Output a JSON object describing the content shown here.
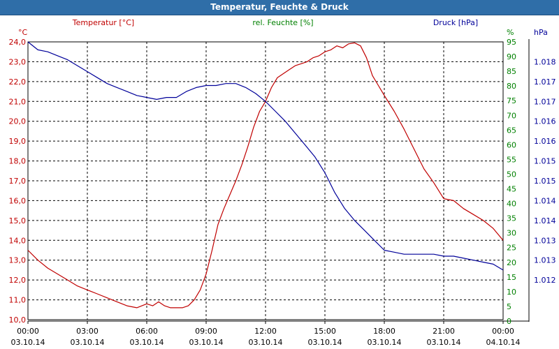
{
  "window": {
    "title": "Temperatur, Feuchte & Druck"
  },
  "colors": {
    "temperature": "#c00000",
    "humidity": "#008000",
    "pressure": "#000099",
    "grid": "#000000",
    "titlebar": "#2f6ea8"
  },
  "chart_data": {
    "type": "line",
    "title": "Temperatur, Feuchte & Druck",
    "x_axis": {
      "unit": "hours",
      "range": [
        0,
        24
      ],
      "ticks": [
        {
          "hour": 0,
          "time": "00:00",
          "date": "03.10.14"
        },
        {
          "hour": 3,
          "time": "03:00",
          "date": "03.10.14"
        },
        {
          "hour": 6,
          "time": "06:00",
          "date": "03.10.14"
        },
        {
          "hour": 9,
          "time": "09:00",
          "date": "03.10.14"
        },
        {
          "hour": 12,
          "time": "12:00",
          "date": "03.10.14"
        },
        {
          "hour": 15,
          "time": "15:00",
          "date": "03.10.14"
        },
        {
          "hour": 18,
          "time": "18:00",
          "date": "03.10.14"
        },
        {
          "hour": 21,
          "time": "21:00",
          "date": "03.10.14"
        },
        {
          "hour": 24,
          "time": "00:00",
          "date": "04.10.14"
        }
      ]
    },
    "axes": {
      "temperature": {
        "label": "Temperatur [°C]",
        "unit": "°C",
        "range": [
          10,
          24
        ],
        "ticks": [
          {
            "v": 24,
            "t": "24,0"
          },
          {
            "v": 23,
            "t": "23,0"
          },
          {
            "v": 22,
            "t": "22,0"
          },
          {
            "v": 21,
            "t": "21,0"
          },
          {
            "v": 20,
            "t": "20,0"
          },
          {
            "v": 19,
            "t": "19,0"
          },
          {
            "v": 18,
            "t": "18,0"
          },
          {
            "v": 17,
            "t": "17,0"
          },
          {
            "v": 16,
            "t": "16,0"
          },
          {
            "v": 15,
            "t": "15,0"
          },
          {
            "v": 14,
            "t": "14,0"
          },
          {
            "v": 13,
            "t": "13,0"
          },
          {
            "v": 12,
            "t": "12,0"
          },
          {
            "v": 11,
            "t": "11,0"
          },
          {
            "v": 10,
            "t": "10,0"
          }
        ]
      },
      "humidity": {
        "label": "rel. Feuchte [%]",
        "unit": "%",
        "range": [
          0,
          100
        ],
        "ticks": [
          {
            "v": 95,
            "t": "95"
          },
          {
            "v": 90,
            "t": "90"
          },
          {
            "v": 85,
            "t": "85"
          },
          {
            "v": 80,
            "t": "80"
          },
          {
            "v": 75,
            "t": "75"
          },
          {
            "v": 70,
            "t": "70"
          },
          {
            "v": 65,
            "t": "65"
          },
          {
            "v": 60,
            "t": "60"
          },
          {
            "v": 55,
            "t": "55"
          },
          {
            "v": 50,
            "t": "50"
          },
          {
            "v": 45,
            "t": "45"
          },
          {
            "v": 40,
            "t": "40"
          },
          {
            "v": 35,
            "t": "35"
          },
          {
            "v": 30,
            "t": "30"
          },
          {
            "v": 25,
            "t": "25"
          },
          {
            "v": 20,
            "t": "20"
          },
          {
            "v": 15,
            "t": "15"
          },
          {
            "v": 10,
            "t": "10"
          },
          {
            "v": 5,
            "t": "5"
          },
          {
            "v": 0,
            "t": "0"
          }
        ]
      },
      "pressure": {
        "label": "Druck [hPa]",
        "unit": "hPa",
        "range": [
          0,
          14
        ],
        "ticks": [
          {
            "v": 13,
            "t": "1.018"
          },
          {
            "v": 12,
            "t": "1.017"
          },
          {
            "v": 11,
            "t": "1.017"
          },
          {
            "v": 10,
            "t": "1.016"
          },
          {
            "v": 9,
            "t": "1.016"
          },
          {
            "v": 8,
            "t": "1.015"
          },
          {
            "v": 7,
            "t": "1.015"
          },
          {
            "v": 6,
            "t": "1.014"
          },
          {
            "v": 5,
            "t": "1.014"
          },
          {
            "v": 4,
            "t": "1.013"
          },
          {
            "v": 3,
            "t": "1.013"
          },
          {
            "v": 2,
            "t": "1.012"
          }
        ]
      }
    },
    "series": [
      {
        "name": "Temperatur [°C]",
        "axis": "temperature",
        "x": [
          0,
          0.5,
          1,
          1.5,
          2,
          2.5,
          3,
          3.5,
          4,
          4.5,
          5,
          5.5,
          6,
          6.3,
          6.6,
          6.9,
          7.2,
          7.5,
          7.8,
          8.1,
          8.4,
          8.7,
          9,
          9.3,
          9.6,
          9.9,
          10.2,
          10.5,
          10.8,
          11.1,
          11.4,
          11.7,
          12,
          12.3,
          12.6,
          12.9,
          13.2,
          13.5,
          13.8,
          14.1,
          14.4,
          14.7,
          15,
          15.3,
          15.6,
          15.9,
          16.2,
          16.5,
          16.8,
          17.1,
          17.4,
          17.7,
          18,
          18.5,
          19,
          19.5,
          20,
          20.5,
          21,
          21.5,
          22,
          22.5,
          23,
          23.5,
          24
        ],
        "values": [
          13.5,
          13.0,
          12.6,
          12.3,
          12.0,
          11.7,
          11.5,
          11.3,
          11.1,
          10.9,
          10.7,
          10.6,
          10.8,
          10.7,
          10.9,
          10.7,
          10.6,
          10.6,
          10.6,
          10.7,
          11.0,
          11.5,
          12.3,
          13.5,
          14.8,
          15.6,
          16.3,
          17.0,
          17.8,
          18.7,
          19.7,
          20.5,
          21.0,
          21.7,
          22.2,
          22.4,
          22.6,
          22.8,
          22.9,
          23.0,
          23.2,
          23.3,
          23.5,
          23.6,
          23.8,
          23.7,
          23.9,
          23.95,
          23.8,
          23.2,
          22.3,
          21.8,
          21.3,
          20.5,
          19.6,
          18.6,
          17.6,
          16.9,
          16.1,
          16.0,
          15.6,
          15.3,
          15.0,
          14.6,
          14.0
        ]
      },
      {
        "name": "Druck [hPa]",
        "axis": "pressure",
        "x": [
          0,
          0.5,
          1,
          1.5,
          2,
          2.5,
          3,
          3.5,
          4,
          4.5,
          5,
          5.5,
          6,
          6.5,
          7,
          7.5,
          8,
          8.5,
          9,
          9.5,
          10,
          10.5,
          11,
          11.5,
          12,
          12.5,
          13,
          13.5,
          14,
          14.5,
          15,
          15.5,
          16,
          16.5,
          17,
          17.5,
          18,
          18.5,
          19,
          19.5,
          20,
          20.5,
          21,
          21.5,
          22,
          22.5,
          23,
          23.5,
          24
        ],
        "values": [
          14.0,
          13.6,
          13.5,
          13.3,
          13.1,
          12.8,
          12.5,
          12.2,
          11.9,
          11.7,
          11.5,
          11.3,
          11.2,
          11.1,
          11.2,
          11.2,
          11.5,
          11.7,
          11.8,
          11.8,
          11.9,
          11.9,
          11.7,
          11.4,
          11.0,
          10.5,
          10.0,
          9.4,
          8.8,
          8.2,
          7.4,
          6.4,
          5.6,
          5.0,
          4.5,
          4.0,
          3.5,
          3.4,
          3.3,
          3.3,
          3.3,
          3.3,
          3.2,
          3.2,
          3.1,
          3.0,
          2.9,
          2.8,
          2.5
        ]
      }
    ]
  }
}
